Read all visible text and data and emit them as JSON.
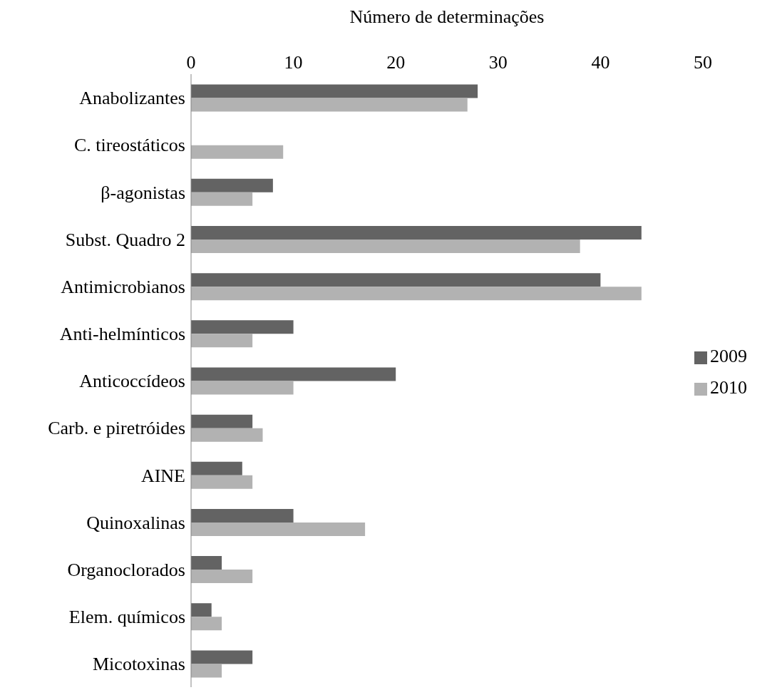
{
  "chart_data": {
    "type": "bar",
    "orientation": "horizontal",
    "xlabel": "Número de determinações",
    "categories": [
      "Anabolizantes",
      "C. tireostáticos",
      "β-agonistas",
      "Subst. Quadro 2",
      "Antimicrobianos",
      "Anti-helmínticos",
      "Anticoccídeos",
      "Carb. e piretróides",
      "AINE",
      "Quinoxalinas",
      "Organoclorados",
      "Elem. químicos",
      "Micotoxinas"
    ],
    "series": [
      {
        "name": "2009",
        "color": "#636363",
        "values": [
          28,
          0,
          8,
          44,
          40,
          10,
          20,
          6,
          5,
          10,
          3,
          2,
          6
        ]
      },
      {
        "name": "2010",
        "color": "#b2b2b2",
        "values": [
          27,
          9,
          6,
          38,
          44,
          6,
          10,
          7,
          6,
          17,
          6,
          3,
          3
        ]
      }
    ],
    "xlim": [
      0,
      50
    ],
    "xticks": [
      0,
      10,
      20,
      30,
      40,
      50
    ],
    "legend": "right",
    "grid": false
  }
}
